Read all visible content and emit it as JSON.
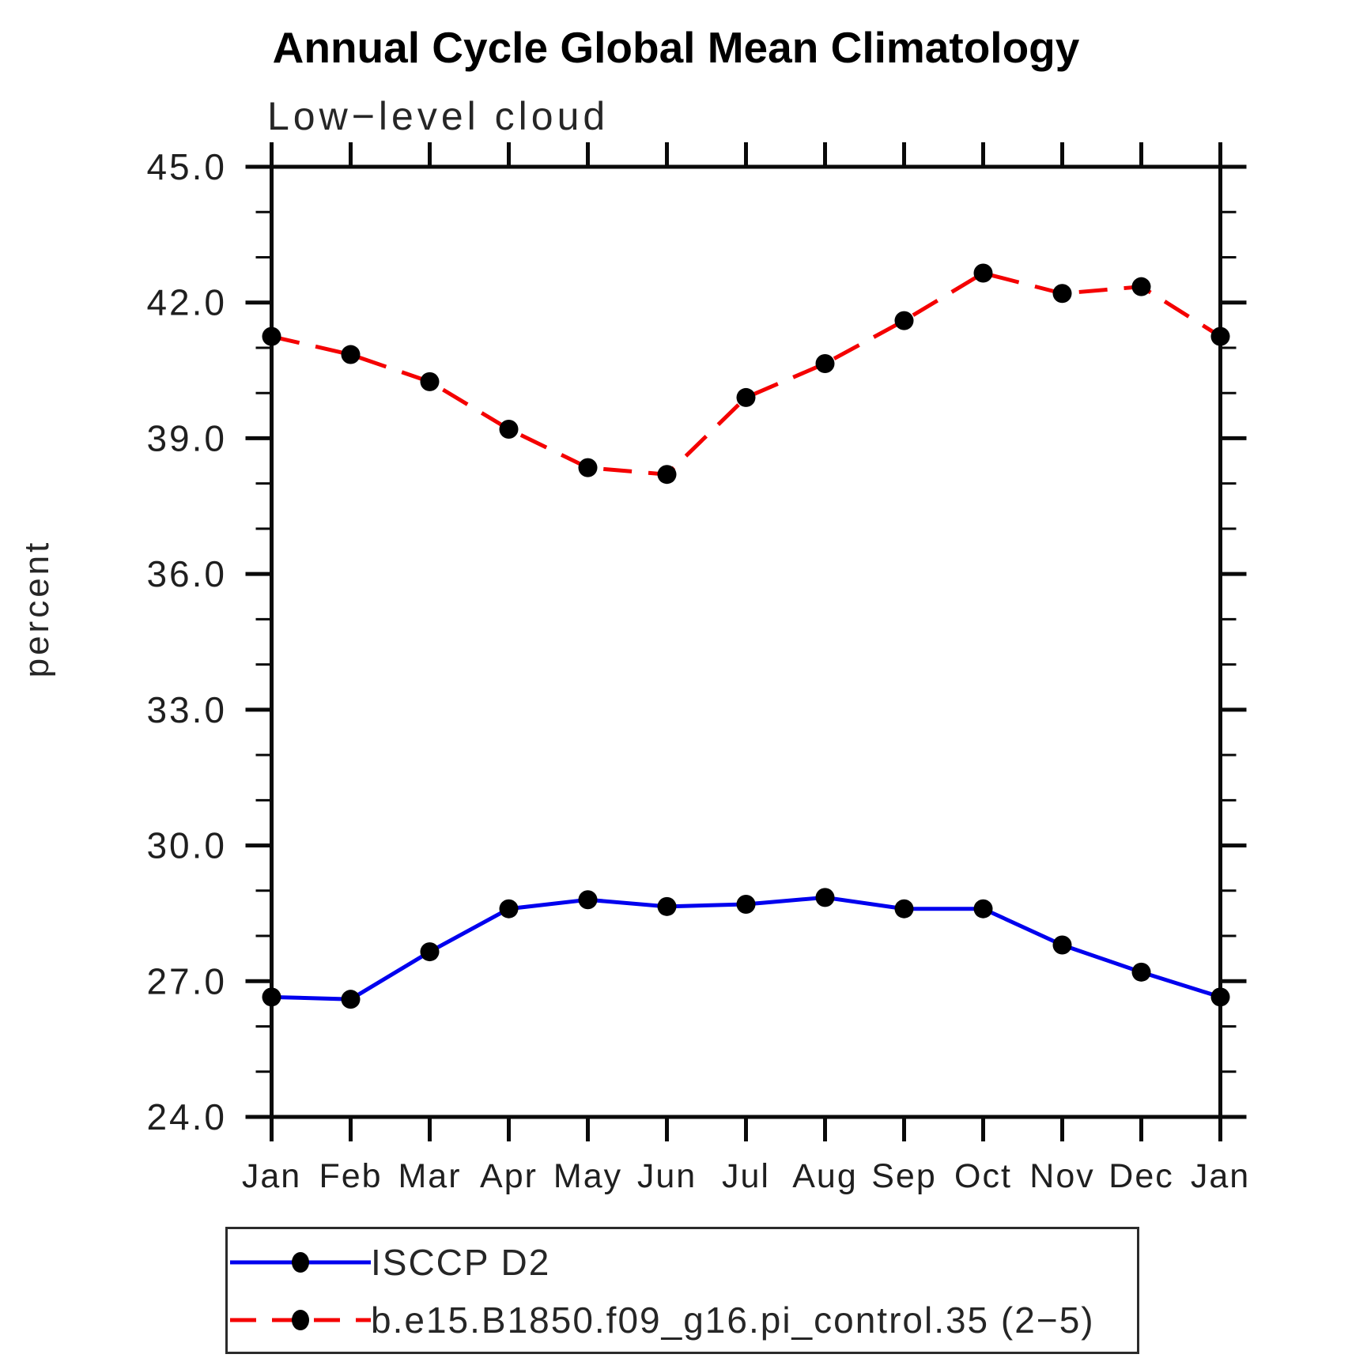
{
  "chart": {
    "title": "Annual Cycle Global Mean Climatology",
    "subtitle": "Low−level cloud",
    "ylabel": "percent"
  },
  "chart_data": {
    "type": "line",
    "title": "Annual Cycle Global Mean Climatology",
    "subtitle": "Low−level cloud",
    "xlabel": "",
    "ylabel": "percent",
    "x_categories": [
      "Jan",
      "Feb",
      "Mar",
      "Apr",
      "May",
      "Jun",
      "Jul",
      "Aug",
      "Sep",
      "Oct",
      "Nov",
      "Dec",
      "Jan"
    ],
    "ylim": [
      24.0,
      45.0
    ],
    "ytick_major_labels": [
      "24.0",
      "27.0",
      "30.0",
      "33.0",
      "36.0",
      "39.0",
      "42.0",
      "45.0"
    ],
    "ytick_major_values": [
      24.0,
      27.0,
      30.0,
      33.0,
      36.0,
      39.0,
      42.0,
      45.0
    ],
    "ytick_minor_interval": 1.0,
    "grid": false,
    "frame": "box-with-mirrored-outward-ticks",
    "legend_position": "bottom-left-box",
    "series": [
      {
        "name": "ISCCP D2",
        "line_style": "solid",
        "color": "#0000ee",
        "marker": "circle",
        "marker_color": "#000000",
        "values": [
          26.65,
          26.6,
          27.65,
          28.6,
          28.8,
          28.65,
          28.7,
          28.85,
          28.6,
          28.6,
          27.8,
          27.2,
          26.65
        ]
      },
      {
        "name": "b.e15.B1850.f09_g16.pi_control.35 (2−5)",
        "line_style": "dashed",
        "color": "#f40000",
        "marker": "circle",
        "marker_color": "#000000",
        "values": [
          41.25,
          40.85,
          40.25,
          39.2,
          38.35,
          38.2,
          39.9,
          40.65,
          41.6,
          42.65,
          42.2,
          42.35,
          41.25
        ]
      }
    ]
  }
}
